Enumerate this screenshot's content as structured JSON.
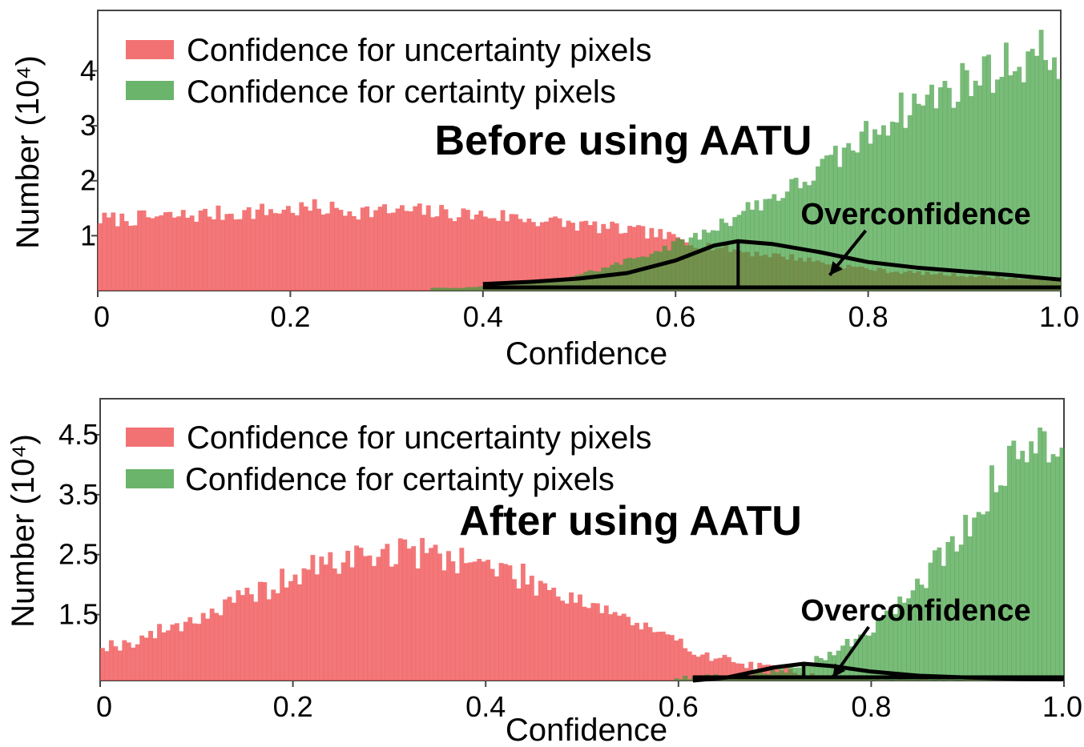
{
  "colors": {
    "uncertainty": "#f0595a",
    "certainty": "#3a9b3a",
    "axis": "#444444",
    "curve": "#000000"
  },
  "chart_data": [
    {
      "type": "bar",
      "subtype": "histogram",
      "title": "Before using AATU",
      "xlabel": "Confidence",
      "ylabel": "Number (10⁴)",
      "xlim": [
        0,
        1.0
      ],
      "ylim": [
        0,
        5.1
      ],
      "xticks": [
        0,
        0.2,
        0.4,
        0.6,
        0.8,
        1.0
      ],
      "xtick_labels": [
        "0",
        "0.2",
        "0.4",
        "0.6",
        "0.8",
        "1.0"
      ],
      "yticks": [
        1,
        2,
        3,
        4
      ],
      "ytick_labels": [
        "1",
        "2",
        "3",
        "4"
      ],
      "legend": {
        "location": "upper-left",
        "entries": [
          "Confidence for uncertainty pixels",
          "Confidence for certainty pixels"
        ]
      },
      "annotation": {
        "text": "Overconfidence",
        "arrow_to": [
          0.76,
          0.28
        ]
      },
      "series": [
        {
          "name": "Confidence for uncertainty pixels",
          "bin_centers": [
            0.025,
            0.075,
            0.125,
            0.175,
            0.225,
            0.275,
            0.325,
            0.375,
            0.425,
            0.475,
            0.525,
            0.575,
            0.625,
            0.675,
            0.725,
            0.775,
            0.825,
            0.875,
            0.925,
            0.975
          ],
          "values": [
            1.3,
            1.35,
            1.4,
            1.45,
            1.5,
            1.45,
            1.45,
            1.4,
            1.35,
            1.25,
            1.15,
            1.05,
            0.85,
            0.7,
            0.6,
            0.45,
            0.35,
            0.3,
            0.25,
            0.2
          ]
        },
        {
          "name": "Confidence for certainty pixels",
          "bin_centers": [
            0.375,
            0.425,
            0.475,
            0.525,
            0.575,
            0.625,
            0.675,
            0.725,
            0.775,
            0.825,
            0.875,
            0.925,
            0.975
          ],
          "values": [
            0.05,
            0.1,
            0.2,
            0.4,
            0.7,
            1.0,
            1.5,
            1.9,
            2.5,
            3.2,
            3.6,
            4.0,
            4.3
          ]
        }
      ],
      "overconfidence_curve": {
        "x": [
          0.4,
          0.45,
          0.5,
          0.55,
          0.6,
          0.64,
          0.665,
          0.7,
          0.75,
          0.8,
          0.85,
          0.9,
          0.95,
          1.0
        ],
        "y": [
          0.12,
          0.16,
          0.22,
          0.32,
          0.55,
          0.82,
          0.9,
          0.85,
          0.7,
          0.52,
          0.42,
          0.35,
          0.28,
          0.2
        ],
        "peak_x": 0.665
      }
    },
    {
      "type": "bar",
      "subtype": "histogram",
      "title": "After using AATU",
      "xlabel": "Confidence",
      "ylabel": "Number (10⁴)",
      "xlim": [
        0,
        1.0
      ],
      "ylim": [
        0.4,
        5.1
      ],
      "xticks": [
        0,
        0.2,
        0.4,
        0.6,
        0.8,
        1.0
      ],
      "xtick_labels": [
        "0",
        "0.2",
        "0.4",
        "0.6",
        "0.8",
        "1.0"
      ],
      "yticks": [
        1.5,
        2.5,
        3.5,
        4.5
      ],
      "ytick_labels": [
        "1.5",
        "2.5",
        "3.5",
        "4.5"
      ],
      "legend": {
        "location": "upper-left",
        "entries": [
          "Confidence for uncertainty pixels",
          "Confidence for certainty pixels"
        ]
      },
      "annotation": {
        "text": "Overconfidence",
        "arrow_to": [
          0.76,
          0.45
        ]
      },
      "series": [
        {
          "name": "Confidence for uncertainty pixels",
          "bin_centers": [
            0.025,
            0.075,
            0.125,
            0.175,
            0.225,
            0.275,
            0.325,
            0.375,
            0.425,
            0.475,
            0.525,
            0.575,
            0.625,
            0.675,
            0.725,
            0.775,
            0.825,
            0.875,
            0.925,
            0.975
          ],
          "values": [
            1.0,
            1.3,
            1.6,
            1.95,
            2.3,
            2.5,
            2.55,
            2.45,
            2.2,
            1.9,
            1.6,
            1.2,
            0.85,
            0.65,
            0.55,
            0.45,
            0.42,
            0.41,
            0.41,
            0.4
          ]
        },
        {
          "name": "Confidence for certainty pixels",
          "bin_centers": [
            0.625,
            0.675,
            0.725,
            0.775,
            0.825,
            0.875,
            0.925,
            0.975
          ],
          "values": [
            0.45,
            0.5,
            0.6,
            1.0,
            1.6,
            2.5,
            3.6,
            4.5
          ]
        }
      ],
      "overconfidence_curve": {
        "x": [
          0.615,
          0.65,
          0.7,
          0.73,
          0.76,
          0.8,
          0.85,
          0.9,
          0.95,
          1.0
        ],
        "y": [
          0.4,
          0.45,
          0.62,
          0.68,
          0.64,
          0.55,
          0.48,
          0.45,
          0.43,
          0.42
        ],
        "peak_x": 0.73
      }
    }
  ]
}
